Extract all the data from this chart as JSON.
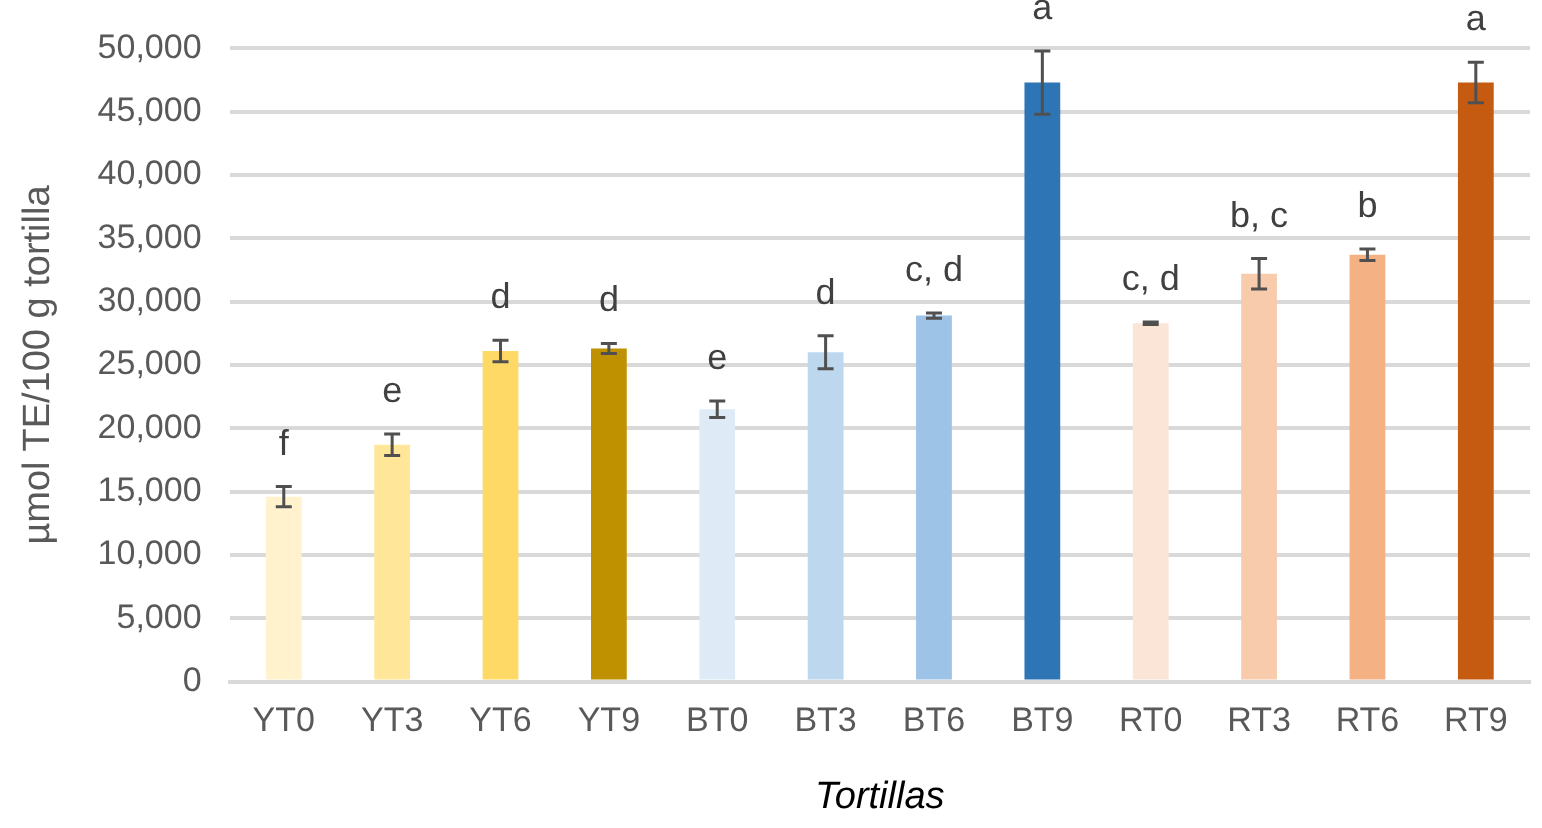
{
  "chart_data": {
    "type": "bar",
    "xlabel": "Tortillas",
    "ylabel": "µmol TE/100 g tortilla",
    "categories": [
      "YT0",
      "YT3",
      "YT6",
      "YT9",
      "BT0",
      "BT3",
      "BT6",
      "BT9",
      "RT0",
      "RT3",
      "RT6",
      "RT9"
    ],
    "values": [
      14600,
      18700,
      26100,
      26300,
      21500,
      26000,
      28900,
      47300,
      28300,
      32200,
      33700,
      47300
    ],
    "errors": [
      800,
      850,
      850,
      400,
      650,
      1300,
      200,
      2500,
      100,
      1200,
      450,
      1600
    ],
    "colors": [
      "#fff2cc",
      "#ffe699",
      "#ffd966",
      "#bf9000",
      "#deebf7",
      "#bdd7ee",
      "#9dc3e6",
      "#2e75b6",
      "#fbe5d6",
      "#f8cbad",
      "#f4b183",
      "#c55a11"
    ],
    "ylim": [
      0,
      50000
    ],
    "yticks": [
      {
        "value": 0,
        "label": "0"
      },
      {
        "value": 5000,
        "label": "5,000"
      },
      {
        "value": 10000,
        "label": "10,000"
      },
      {
        "value": 15000,
        "label": "15,000"
      },
      {
        "value": 20000,
        "label": "20,000"
      },
      {
        "value": 25000,
        "label": "25,000"
      },
      {
        "value": 30000,
        "label": "30,000"
      },
      {
        "value": 35000,
        "label": "35,000"
      },
      {
        "value": 40000,
        "label": "40,000"
      },
      {
        "value": 45000,
        "label": "45,000"
      },
      {
        "value": 50000,
        "label": "50,000"
      }
    ],
    "grid": "y",
    "annotations": [
      {
        "text": "f",
        "x": "YT0",
        "y": 14600
      },
      {
        "text": "e",
        "x": "YT3",
        "y": 18700
      },
      {
        "text": "d",
        "x": "YT6",
        "y": 26100
      },
      {
        "text": "d",
        "x": "YT9",
        "y": 26300
      },
      {
        "text": "e",
        "x": "BT0",
        "y": 21500
      },
      {
        "text": "d",
        "x": "BT3",
        "y": 26000
      },
      {
        "text": "c, d",
        "x": "BT6",
        "y": 28900
      },
      {
        "text": "a",
        "x": "BT9",
        "y": 47300
      },
      {
        "text": "c, d",
        "x": "RT0",
        "y": 28300
      },
      {
        "text": "b, c",
        "x": "RT3",
        "y": 32200
      },
      {
        "text": "b",
        "x": "RT6",
        "y": 33700
      },
      {
        "text": "a",
        "x": "RT9",
        "y": 47300
      }
    ]
  }
}
